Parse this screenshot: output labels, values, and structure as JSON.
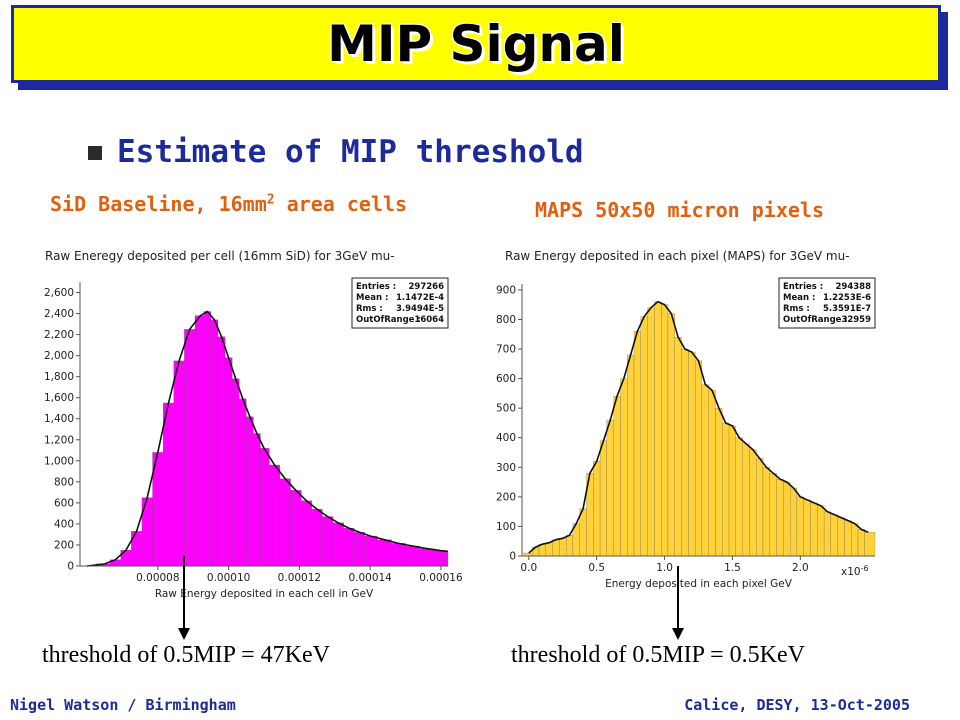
{
  "slide": {
    "title": "MIP Signal",
    "bullet": "Estimate of MIP threshold",
    "left_caption_main": "SiD Baseline, 16mm",
    "left_caption_sup": "2",
    "left_caption_tail": " area cells",
    "right_caption": "MAPS 50x50 micron pixels",
    "left_threshold": "threshold of 0.5MIP = 47KeV",
    "right_threshold": "threshold of 0.5MIP = 0.5KeV",
    "footer_left": "Nigel Watson / Birmingham",
    "footer_right": "Calice, DESY, 13-Oct-2005"
  },
  "colors": {
    "title_bg": "#ffff00",
    "title_border": "#1c2a9c",
    "bullet_text": "#1c2a9c",
    "caption": "#e06010",
    "left_fill": "#ff00ff",
    "right_fill": "#ffd23a"
  },
  "chart_data": [
    {
      "type": "bar",
      "title": "Raw Eneregy deposited per cell (16mm SiD) for 3GeV mu-",
      "xlabel": "Raw Energy deposited in each cell in GeV",
      "ylabel": "",
      "xlim": [
        5.8e-05,
        0.000162
      ],
      "ylim": [
        0,
        2700
      ],
      "x_ticks": [
        8e-05,
        0.0001,
        0.00012,
        0.00014,
        0.00016
      ],
      "x_tick_labels": [
        "0.00008",
        "0.00010",
        "0.00012",
        "0.00014",
        "0.00016"
      ],
      "y_ticks": [
        0,
        200,
        400,
        600,
        800,
        1000,
        1200,
        1400,
        1600,
        1800,
        2000,
        2200,
        2400,
        2600
      ],
      "y_tick_labels": [
        "0",
        "200",
        "400",
        "600",
        "800",
        "1,000",
        "1,200",
        "1,400",
        "1,600",
        "1,800",
        "2,000",
        "2,200",
        "2,400",
        "2,600"
      ],
      "fill": "#ff00ff",
      "stats": {
        "labels": [
          "Entries :",
          "Mean :",
          "Rms :",
          "OutOfRange :"
        ],
        "values": [
          "297266",
          "1.1472E-4",
          "3.9494E-5",
          "16064"
        ]
      },
      "x": [
        6e-05,
        6.5e-05,
        6.8e-05,
        7.1e-05,
        7.4e-05,
        7.7e-05,
        8e-05,
        8.3e-05,
        8.6e-05,
        8.9e-05,
        9.2e-05,
        9.4e-05,
        9.6e-05,
        9.8e-05,
        0.0001,
        0.000102,
        0.000104,
        0.000106,
        0.000108,
        0.00011,
        0.000113,
        0.000116,
        0.000119,
        0.000122,
        0.000125,
        0.000128,
        0.000131,
        0.000134,
        0.000137,
        0.00014,
        0.000144,
        0.000148,
        0.000152,
        0.000156,
        0.00016,
        0.000162
      ],
      "values": [
        0,
        20,
        60,
        150,
        330,
        650,
        1080,
        1550,
        1950,
        2250,
        2380,
        2420,
        2340,
        2180,
        1980,
        1780,
        1590,
        1420,
        1260,
        1120,
        960,
        830,
        720,
        620,
        540,
        470,
        410,
        360,
        320,
        285,
        250,
        215,
        190,
        165,
        145,
        140
      ]
    },
    {
      "type": "bar",
      "title": "Raw Energy deposited in each pixel (MAPS) for 3GeV mu-",
      "xlabel": "Energy deposited in each pixel GeV",
      "ylabel": "",
      "x_unit_label": "x10-6",
      "xlim": [
        -0.05,
        2.55
      ],
      "ylim": [
        0,
        920
      ],
      "x_ticks": [
        0.0,
        0.5,
        1.0,
        1.5,
        2.0
      ],
      "x_tick_labels": [
        "0.0",
        "0.5",
        "1.0",
        "1.5",
        "2.0"
      ],
      "y_ticks": [
        0,
        100,
        200,
        300,
        400,
        500,
        600,
        700,
        800,
        900
      ],
      "y_tick_labels": [
        "0",
        "100",
        "200",
        "300",
        "400",
        "500",
        "600",
        "700",
        "800",
        "900"
      ],
      "fill": "#ffd23a",
      "stats": {
        "labels": [
          "Entries :",
          "Mean :",
          "Rms :",
          "OutOfRange :"
        ],
        "values": [
          "294388",
          "1.2253E-6",
          "5.3591E-7",
          "32959"
        ]
      },
      "x": [
        0.0,
        0.05,
        0.1,
        0.15,
        0.2,
        0.25,
        0.3,
        0.35,
        0.4,
        0.45,
        0.5,
        0.55,
        0.6,
        0.65,
        0.7,
        0.75,
        0.8,
        0.85,
        0.9,
        0.95,
        1.0,
        1.05,
        1.1,
        1.15,
        1.2,
        1.25,
        1.3,
        1.35,
        1.4,
        1.45,
        1.5,
        1.55,
        1.6,
        1.65,
        1.7,
        1.75,
        1.8,
        1.85,
        1.9,
        1.95,
        2.0,
        2.05,
        2.1,
        2.15,
        2.2,
        2.25,
        2.3,
        2.35,
        2.4,
        2.45,
        2.5
      ],
      "values": [
        10,
        30,
        40,
        45,
        55,
        60,
        70,
        110,
        160,
        280,
        320,
        390,
        460,
        540,
        600,
        680,
        760,
        810,
        840,
        860,
        850,
        820,
        740,
        700,
        690,
        660,
        580,
        560,
        500,
        450,
        440,
        400,
        380,
        360,
        330,
        300,
        280,
        260,
        250,
        230,
        200,
        190,
        180,
        170,
        150,
        140,
        130,
        120,
        110,
        90,
        80
      ]
    }
  ]
}
